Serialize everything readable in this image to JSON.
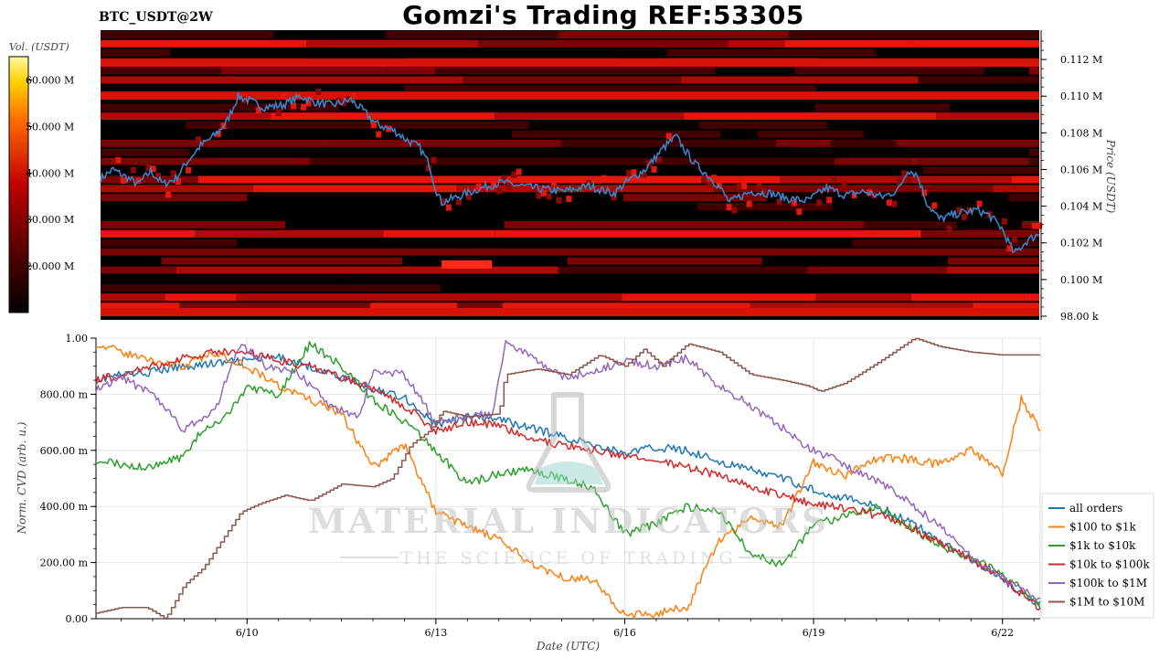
{
  "header": {
    "title": "Gomzi's Trading REF:53305",
    "pair": "BTC_USDT@2W"
  },
  "colors": {
    "heat_bg": "#050000",
    "heat_low": "#5a0000",
    "heat_high": "#ff2a1a",
    "price_line": "#3a85c8",
    "grid": "#e6e6e6"
  },
  "watermark": {
    "main": "MATERIAL INDICATORS",
    "sub": "THE SCIENCE OF TRADING",
    "icon": "flask-icon"
  },
  "chart_data": [
    {
      "type": "heatmap",
      "title": "",
      "ylabel": "Price (USDT)",
      "ylim": [
        97800,
        113600
      ],
      "yticks": [
        {
          "value": 98000,
          "label": "98.00 k"
        },
        {
          "value": 100000,
          "label": "0.100 M"
        },
        {
          "value": 102000,
          "label": "0.102 M"
        },
        {
          "value": 104000,
          "label": "0.104 M"
        },
        {
          "value": 106000,
          "label": "0.106 M"
        },
        {
          "value": 108000,
          "label": "0.108 M"
        },
        {
          "value": 110000,
          "label": "0.110 M"
        },
        {
          "value": 112000,
          "label": "0.112 M"
        }
      ],
      "colorbar": {
        "label": "Vol. (USDT)",
        "ticks": [
          "20.000 M",
          "30.000 M",
          "40.000 M",
          "50.000 M",
          "60.000 M"
        ],
        "range": [
          10,
          65
        ]
      },
      "price_series": {
        "x": [
          7.6,
          7.8,
          8.0,
          8.2,
          8.4,
          8.6,
          8.8,
          9.0,
          9.2,
          9.4,
          9.6,
          9.8,
          9.95,
          10.2,
          10.5,
          10.8,
          11.0,
          11.3,
          11.6,
          11.8,
          12.0,
          12.3,
          12.5,
          12.7,
          12.85,
          12.95,
          13.05,
          13.3,
          13.6,
          14.0,
          14.5,
          15.0,
          15.4,
          15.8,
          16.0,
          16.3,
          16.6,
          16.8,
          16.95,
          17.1,
          17.3,
          17.5,
          17.65,
          17.8,
          18.0,
          18.3,
          18.6,
          18.9,
          19.2,
          19.5,
          19.8,
          20.1,
          20.35,
          20.5,
          20.65,
          20.8,
          21.0,
          21.3,
          21.6,
          21.8,
          22.0,
          22.2,
          22.4,
          22.6
        ],
        "y": [
          105500,
          106000,
          105600,
          105200,
          105900,
          105200,
          105500,
          106500,
          107300,
          107800,
          108500,
          110000,
          109800,
          109400,
          109500,
          110000,
          109700,
          109500,
          109800,
          109200,
          108500,
          108100,
          107600,
          107200,
          106300,
          105000,
          104200,
          104500,
          104900,
          105300,
          105000,
          104800,
          105100,
          104700,
          105300,
          106000,
          107200,
          107800,
          107000,
          106300,
          105700,
          105000,
          104200,
          104500,
          104800,
          104700,
          104400,
          104300,
          105000,
          104600,
          104800,
          104500,
          104900,
          106000,
          105700,
          104200,
          103300,
          103600,
          103800,
          103500,
          102800,
          101400,
          102100,
          102500
        ]
      }
    },
    {
      "type": "line",
      "title": "",
      "xlabel": "Date (UTC)",
      "ylabel": "Norm. CVD (arb. u.)",
      "xlim": [
        7.6,
        22.6
      ],
      "ylim": [
        0,
        1
      ],
      "xticks": [
        {
          "value": 10,
          "label": "6/10"
        },
        {
          "value": 13,
          "label": "6/13"
        },
        {
          "value": 16,
          "label": "6/16"
        },
        {
          "value": 19,
          "label": "6/19"
        },
        {
          "value": 22,
          "label": "6/22"
        }
      ],
      "yticks": [
        {
          "value": 0,
          "label": "0.00"
        },
        {
          "value": 0.2,
          "label": "200.00 m"
        },
        {
          "value": 0.4,
          "label": "400.00 m"
        },
        {
          "value": 0.6,
          "label": "600.00 m"
        },
        {
          "value": 0.8,
          "label": "800.00 m"
        },
        {
          "value": 1.0,
          "label": "1.00"
        }
      ],
      "legend_position": "bottom-right",
      "series": [
        {
          "name": "all orders",
          "color": "#1f77b4",
          "x": [
            7.6,
            8.0,
            8.5,
            9.0,
            9.5,
            10.0,
            10.5,
            11.0,
            11.5,
            12.0,
            12.5,
            13.0,
            13.5,
            14.0,
            14.5,
            15.0,
            15.5,
            16.0,
            16.5,
            17.0,
            17.5,
            18.0,
            18.5,
            19.0,
            19.5,
            20.0,
            20.5,
            21.0,
            21.5,
            22.0,
            22.6
          ],
          "y": [
            0.85,
            0.87,
            0.88,
            0.9,
            0.91,
            0.92,
            0.93,
            0.9,
            0.86,
            0.82,
            0.79,
            0.69,
            0.72,
            0.71,
            0.68,
            0.65,
            0.62,
            0.59,
            0.61,
            0.6,
            0.56,
            0.53,
            0.5,
            0.46,
            0.43,
            0.4,
            0.35,
            0.28,
            0.21,
            0.14,
            0.04
          ]
        },
        {
          "name": "$100 to $1k",
          "color": "#ff7f0e",
          "x": [
            7.6,
            8.0,
            8.5,
            9.0,
            9.5,
            10.0,
            10.5,
            11.0,
            11.5,
            12.0,
            12.5,
            13.0,
            13.5,
            14.0,
            14.5,
            15.0,
            15.5,
            16.0,
            16.5,
            17.0,
            17.5,
            18.0,
            18.5,
            19.0,
            19.5,
            20.0,
            20.5,
            21.0,
            21.5,
            22.0,
            22.3,
            22.6
          ],
          "y": [
            0.98,
            0.95,
            0.92,
            0.9,
            0.95,
            0.9,
            0.83,
            0.78,
            0.73,
            0.54,
            0.62,
            0.38,
            0.33,
            0.28,
            0.2,
            0.15,
            0.14,
            0.01,
            0.02,
            0.04,
            0.28,
            0.36,
            0.33,
            0.56,
            0.51,
            0.57,
            0.57,
            0.55,
            0.6,
            0.52,
            0.78,
            0.68
          ]
        },
        {
          "name": "$1k to $10k",
          "color": "#2ca02c",
          "x": [
            7.6,
            8.0,
            8.5,
            9.0,
            9.3,
            9.6,
            10.0,
            10.5,
            11.0,
            11.5,
            12.0,
            12.5,
            13.0,
            13.5,
            14.0,
            14.5,
            15.0,
            15.5,
            16.0,
            16.5,
            17.0,
            17.5,
            18.0,
            18.5,
            19.0,
            19.5,
            20.0,
            20.5,
            21.0,
            21.5,
            22.0,
            22.6
          ],
          "y": [
            0.57,
            0.55,
            0.54,
            0.58,
            0.68,
            0.7,
            0.82,
            0.8,
            0.98,
            0.9,
            0.78,
            0.7,
            0.6,
            0.48,
            0.52,
            0.53,
            0.5,
            0.47,
            0.3,
            0.34,
            0.4,
            0.38,
            0.23,
            0.19,
            0.33,
            0.37,
            0.4,
            0.33,
            0.26,
            0.22,
            0.16,
            0.05
          ]
        },
        {
          "name": "$10k to $100k",
          "color": "#d62728",
          "x": [
            7.6,
            8.0,
            8.5,
            9.0,
            9.5,
            10.0,
            10.5,
            11.0,
            11.5,
            12.0,
            12.5,
            13.0,
            13.5,
            14.0,
            14.5,
            15.0,
            15.5,
            16.0,
            16.5,
            17.0,
            17.5,
            18.0,
            18.5,
            19.0,
            19.5,
            20.0,
            20.5,
            21.0,
            21.5,
            22.0,
            22.6
          ],
          "y": [
            0.85,
            0.87,
            0.9,
            0.93,
            0.95,
            0.95,
            0.92,
            0.9,
            0.86,
            0.82,
            0.76,
            0.67,
            0.7,
            0.69,
            0.64,
            0.62,
            0.6,
            0.58,
            0.56,
            0.54,
            0.51,
            0.47,
            0.44,
            0.41,
            0.39,
            0.37,
            0.33,
            0.27,
            0.21,
            0.15,
            0.03
          ]
        },
        {
          "name": "$100k to $1M",
          "color": "#9467bd",
          "x": [
            7.6,
            8.0,
            8.5,
            9.0,
            9.5,
            9.9,
            10.3,
            10.8,
            11.3,
            11.8,
            12.0,
            12.5,
            13.0,
            13.5,
            13.9,
            14.1,
            14.5,
            15.0,
            15.5,
            16.0,
            16.5,
            17.0,
            17.5,
            18.0,
            18.5,
            19.0,
            19.5,
            20.0,
            20.5,
            21.0,
            21.5,
            22.0,
            22.6
          ],
          "y": [
            0.82,
            0.86,
            0.8,
            0.67,
            0.75,
            0.98,
            0.9,
            0.88,
            0.76,
            0.72,
            0.88,
            0.87,
            0.7,
            0.72,
            0.73,
            0.98,
            0.94,
            0.86,
            0.88,
            0.92,
            0.9,
            0.93,
            0.83,
            0.76,
            0.68,
            0.6,
            0.55,
            0.49,
            0.42,
            0.33,
            0.22,
            0.15,
            0.07
          ]
        },
        {
          "name": "$1M to $10M",
          "color": "#8c564b",
          "x": [
            7.6,
            8.0,
            8.4,
            8.7,
            9.0,
            9.3,
            9.6,
            9.9,
            10.2,
            10.6,
            11.0,
            11.5,
            12.0,
            12.3,
            12.6,
            12.9,
            13.1,
            13.5,
            14.0,
            14.1,
            14.6,
            15.1,
            15.6,
            16.0,
            16.3,
            16.6,
            17.0,
            17.5,
            18.0,
            18.5,
            18.9,
            19.1,
            19.5,
            20.0,
            20.4,
            20.6,
            21.0,
            21.5,
            22.0,
            22.6
          ],
          "y": [
            0.02,
            0.04,
            0.04,
            0.0,
            0.12,
            0.18,
            0.28,
            0.38,
            0.41,
            0.44,
            0.42,
            0.48,
            0.47,
            0.5,
            0.62,
            0.67,
            0.74,
            0.72,
            0.73,
            0.87,
            0.89,
            0.87,
            0.94,
            0.9,
            0.96,
            0.9,
            0.98,
            0.95,
            0.87,
            0.85,
            0.83,
            0.81,
            0.84,
            0.91,
            0.97,
            1.0,
            0.97,
            0.95,
            0.94,
            0.94
          ]
        }
      ]
    }
  ]
}
